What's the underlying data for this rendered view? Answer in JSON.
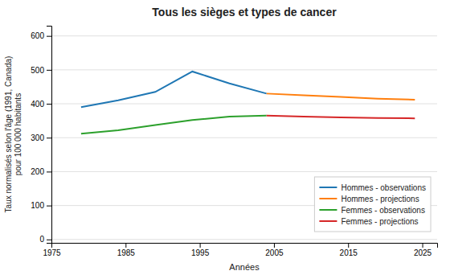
{
  "chart_data": {
    "type": "line",
    "title": "Tous les sièges et types de cancer",
    "x_label": "Années",
    "y_label": "Taux normalisés selon l'âge (1991, Canada)\npour 100 000 habitants",
    "x": [
      1979,
      1984,
      1989,
      1994,
      1999,
      2004,
      2009,
      2014,
      2019,
      2024
    ],
    "series": [
      {
        "name": "Hommes - observations",
        "values": [
          390,
          410,
          435,
          495,
          460,
          430,
          null,
          null,
          null,
          null
        ]
      },
      {
        "name": "Hommes - projections",
        "values": [
          null,
          null,
          null,
          null,
          null,
          430,
          425,
          420,
          415,
          412
        ]
      },
      {
        "name": "Femmes - observations",
        "values": [
          312,
          322,
          337,
          352,
          362,
          365,
          null,
          null,
          null,
          null
        ]
      },
      {
        "name": "Femmes - projections",
        "values": [
          null,
          null,
          null,
          null,
          null,
          365,
          362,
          360,
          358,
          357
        ]
      }
    ],
    "xlim": [
      1975,
      2027
    ],
    "xticks": [
      1975,
      1985,
      1995,
      2005,
      2015,
      2025
    ],
    "ylim": [
      -10,
      630
    ],
    "yticks": [
      0,
      100,
      200,
      300,
      400,
      500,
      600
    ],
    "grid": true,
    "legend": "lower right"
  }
}
